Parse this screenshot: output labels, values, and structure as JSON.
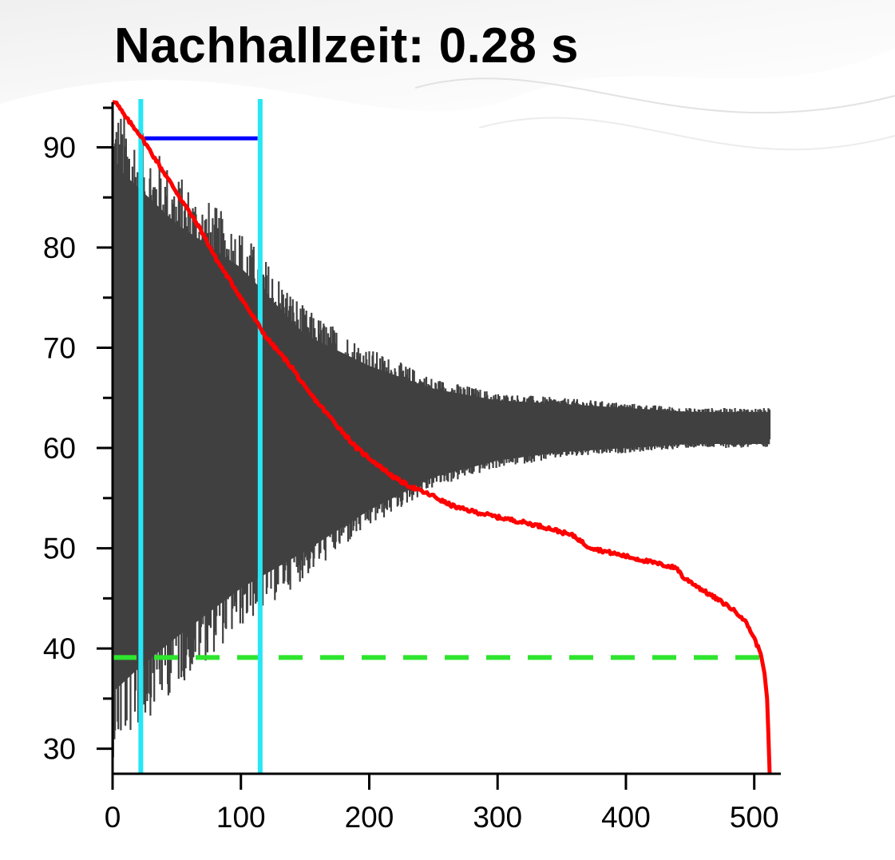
{
  "title": "Nachhallzeit: 0.28 s",
  "chart_data": {
    "type": "line",
    "title": "Nachhallzeit: 0.28 s",
    "xlabel": "",
    "ylabel": "",
    "xlim": [
      0,
      512
    ],
    "ylim": [
      27.5,
      94.5
    ],
    "x_ticks": [
      0,
      100,
      200,
      300,
      400,
      500
    ],
    "y_ticks": [
      30,
      40,
      50,
      60,
      70,
      80,
      90
    ],
    "grid": false,
    "signal_envelope": {
      "color": "#404040",
      "x": [
        0,
        20,
        50,
        100,
        150,
        200,
        250,
        300,
        350,
        400,
        450,
        512
      ],
      "upper": [
        95,
        92,
        87.5,
        82,
        74,
        70,
        67,
        65.5,
        65,
        64.5,
        64,
        64
      ],
      "lower": [
        29,
        32,
        36,
        42,
        47,
        52,
        56,
        58,
        59,
        59.5,
        60,
        60
      ]
    },
    "decay_curve": {
      "color": "#ff0000",
      "x": [
        0,
        10,
        20,
        30,
        40,
        50,
        60,
        70,
        80,
        90,
        100,
        110,
        120,
        130,
        140,
        150,
        160,
        170,
        180,
        190,
        200,
        210,
        220,
        230,
        240,
        250,
        260,
        270,
        280,
        290,
        300,
        320,
        340,
        360,
        370,
        380,
        400,
        420,
        440,
        445,
        450,
        460,
        470,
        480,
        490,
        495,
        500,
        505,
        508,
        510,
        511,
        512
      ],
      "y": [
        95,
        93,
        91.5,
        89.5,
        87.5,
        85.5,
        83.5,
        81.5,
        79,
        77,
        75,
        73,
        71,
        69.5,
        68,
        66,
        64.5,
        63,
        61.5,
        60,
        59,
        58,
        57,
        56.3,
        55.7,
        55.2,
        54.5,
        54,
        53.7,
        53.4,
        53.1,
        52.6,
        52,
        51.2,
        50.2,
        49.8,
        49.2,
        48.6,
        48,
        47,
        46.7,
        45.8,
        45,
        44.2,
        43.2,
        42.3,
        41,
        39.5,
        37.5,
        35,
        31.5,
        27.5
      ]
    },
    "markers": {
      "vertical_lines": {
        "color": "#27e7f4",
        "x": [
          22,
          115
        ]
      },
      "horizontal_segment": {
        "color": "#0000ff",
        "x": [
          25,
          113
        ],
        "y": 90.9
      },
      "noise_floor": {
        "color": "#2ee52e",
        "style": "dashed",
        "y": 39.1
      }
    }
  }
}
